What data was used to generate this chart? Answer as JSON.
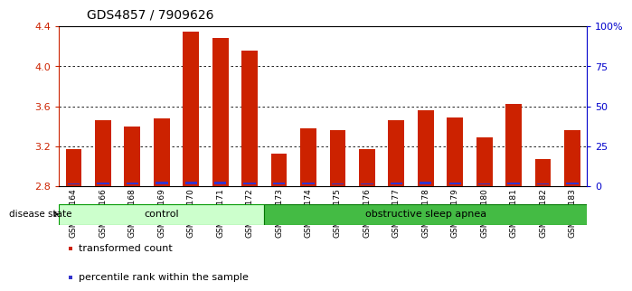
{
  "title": "GDS4857 / 7909626",
  "samples": [
    "GSM949164",
    "GSM949166",
    "GSM949168",
    "GSM949169",
    "GSM949170",
    "GSM949171",
    "GSM949172",
    "GSM949173",
    "GSM949174",
    "GSM949175",
    "GSM949176",
    "GSM949177",
    "GSM949178",
    "GSM949179",
    "GSM949180",
    "GSM949181",
    "GSM949182",
    "GSM949183"
  ],
  "red_values": [
    3.17,
    3.46,
    3.4,
    3.48,
    4.35,
    4.28,
    4.16,
    3.13,
    3.38,
    3.36,
    3.17,
    3.46,
    3.56,
    3.49,
    3.29,
    3.62,
    3.07,
    3.36
  ],
  "blue_pct": [
    2,
    5,
    5,
    6,
    6,
    6,
    5,
    5,
    5,
    3,
    2,
    5,
    6,
    4,
    3,
    5,
    3,
    5
  ],
  "ymin": 2.8,
  "ymax": 4.4,
  "yticks": [
    2.8,
    3.2,
    3.6,
    4.0,
    4.4
  ],
  "right_yticks": [
    0,
    25,
    50,
    75,
    100
  ],
  "bar_color": "#cc2200",
  "blue_color": "#3333cc",
  "groups": [
    {
      "label": "control",
      "start": 0,
      "end": 7,
      "color": "#ccffcc",
      "border": "#009900"
    },
    {
      "label": "obstructive sleep apnea",
      "start": 7,
      "end": 18,
      "color": "#44bb44",
      "border": "#007700"
    }
  ],
  "legend_items": [
    {
      "label": "transformed count",
      "color": "#cc2200"
    },
    {
      "label": "percentile rank within the sample",
      "color": "#3333cc"
    }
  ],
  "bg_color": "#ffffff",
  "tick_label_color_left": "#cc2200",
  "tick_label_color_right": "#0000cc",
  "title_fontsize": 10,
  "bar_width": 0.55
}
